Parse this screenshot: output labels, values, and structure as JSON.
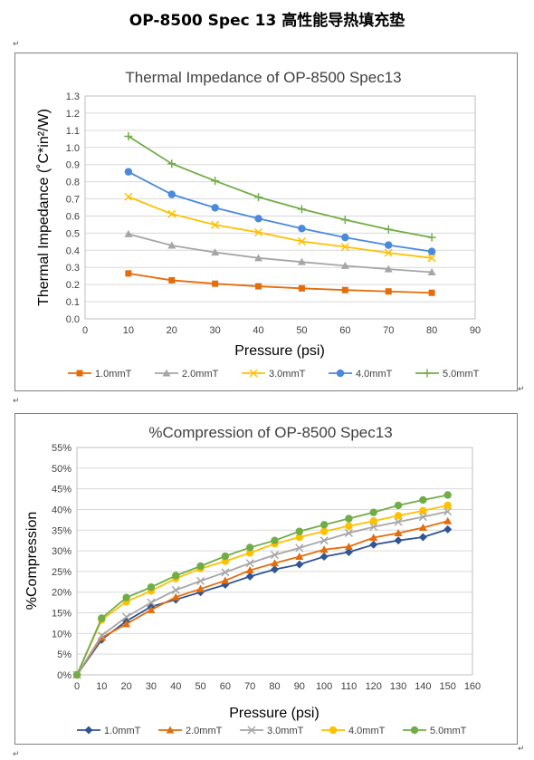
{
  "page": {
    "title": "OP-8500 Spec 13  高性能导热填充垫",
    "para_mark": "↵"
  },
  "chart_data": [
    {
      "type": "line",
      "title": "Thermal Impedance of OP-8500 Spec13",
      "xlabel": "Pressure (psi)",
      "ylabel": "Thermal Impedance (˚C*in²/W)",
      "xlim": [
        0,
        90
      ],
      "ylim": [
        0,
        1.3
      ],
      "x_ticks": [
        0,
        10,
        20,
        30,
        40,
        50,
        60,
        70,
        80,
        90
      ],
      "y_ticks": [
        0.0,
        0.1,
        0.2,
        0.3,
        0.4,
        0.5,
        0.6,
        0.7,
        0.8,
        0.9,
        1.0,
        1.1,
        1.2,
        1.3
      ],
      "y_tick_labels": [
        "0.0",
        "0.1",
        "0.2",
        "0.3",
        "0.4",
        "0.5",
        "0.6",
        "0.7",
        "0.8",
        "0.9",
        "1.0",
        "1.1",
        "1.2",
        "1.3"
      ],
      "grid": true,
      "legend_position": "bottom",
      "x": [
        10,
        20,
        30,
        40,
        50,
        60,
        70,
        80
      ],
      "series": [
        {
          "name": "1.0mmT",
          "color": "#e46c0a",
          "marker": "square",
          "values": [
            0.265,
            0.225,
            0.205,
            0.19,
            0.178,
            0.168,
            0.16,
            0.152
          ]
        },
        {
          "name": "2.0mmT",
          "color": "#a6a6a6",
          "marker": "triangle",
          "values": [
            0.495,
            0.428,
            0.388,
            0.355,
            0.332,
            0.31,
            0.29,
            0.272
          ]
        },
        {
          "name": "3.0mmT",
          "color": "#ffc000",
          "marker": "x",
          "values": [
            0.712,
            0.612,
            0.548,
            0.505,
            0.452,
            0.42,
            0.385,
            0.355
          ]
        },
        {
          "name": "4.0mmT",
          "color": "#4a89dc",
          "marker": "circle",
          "values": [
            0.858,
            0.726,
            0.648,
            0.585,
            0.527,
            0.475,
            0.43,
            0.393
          ]
        },
        {
          "name": "5.0mmT",
          "color": "#70ad47",
          "marker": "plus",
          "values": [
            1.065,
            0.905,
            0.805,
            0.71,
            0.64,
            0.578,
            0.522,
            0.475
          ]
        }
      ]
    },
    {
      "type": "line",
      "title": "%Compression of OP-8500 Spec13",
      "xlabel": "Pressure (psi)",
      "ylabel": "%Compression",
      "xlim": [
        0,
        160
      ],
      "ylim": [
        0,
        0.55
      ],
      "x_ticks": [
        0,
        10,
        20,
        30,
        40,
        50,
        60,
        70,
        80,
        90,
        100,
        110,
        120,
        130,
        140,
        150,
        160
      ],
      "y_ticks": [
        0,
        0.05,
        0.1,
        0.15,
        0.2,
        0.25,
        0.3,
        0.35,
        0.4,
        0.45,
        0.5,
        0.55
      ],
      "y_tick_labels": [
        "0%",
        "5%",
        "10%",
        "15%",
        "20%",
        "25%",
        "30%",
        "35%",
        "40%",
        "45%",
        "50%",
        "55%"
      ],
      "grid": true,
      "legend_position": "bottom",
      "x": [
        0,
        10,
        20,
        30,
        40,
        50,
        60,
        70,
        80,
        90,
        100,
        110,
        120,
        130,
        140,
        150
      ],
      "series": [
        {
          "name": "1.0mmT",
          "color": "#2f5597",
          "marker": "diamond",
          "values": [
            0,
            0.085,
            0.13,
            0.165,
            0.182,
            0.2,
            0.218,
            0.238,
            0.255,
            0.267,
            0.286,
            0.297,
            0.315,
            0.325,
            0.333,
            0.352
          ]
        },
        {
          "name": "2.0mmT",
          "color": "#e46c0a",
          "marker": "triangle",
          "values": [
            0,
            0.09,
            0.123,
            0.157,
            0.188,
            0.208,
            0.228,
            0.253,
            0.27,
            0.286,
            0.303,
            0.31,
            0.332,
            0.343,
            0.356,
            0.372
          ]
        },
        {
          "name": "3.0mmT",
          "color": "#a6a6a6",
          "marker": "x",
          "values": [
            0,
            0.095,
            0.14,
            0.175,
            0.205,
            0.227,
            0.248,
            0.27,
            0.29,
            0.307,
            0.325,
            0.343,
            0.358,
            0.37,
            0.382,
            0.395
          ]
        },
        {
          "name": "4.0mmT",
          "color": "#ffc000",
          "marker": "circle",
          "values": [
            0,
            0.133,
            0.177,
            0.203,
            0.233,
            0.257,
            0.275,
            0.295,
            0.317,
            0.333,
            0.347,
            0.36,
            0.372,
            0.385,
            0.397,
            0.41
          ]
        },
        {
          "name": "5.0mmT",
          "color": "#70ad47",
          "marker": "circle",
          "values": [
            0,
            0.137,
            0.187,
            0.212,
            0.24,
            0.263,
            0.287,
            0.308,
            0.325,
            0.347,
            0.363,
            0.378,
            0.393,
            0.41,
            0.423,
            0.435
          ]
        }
      ]
    }
  ]
}
